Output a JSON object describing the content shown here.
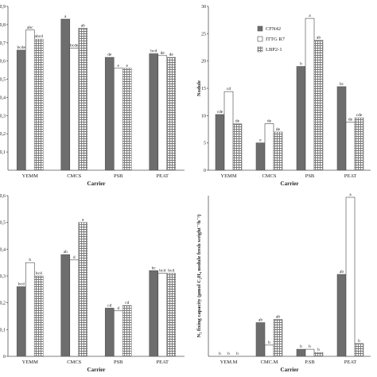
{
  "legend": {
    "series": [
      "CFN42",
      "ITTG R7",
      "LBP2-1"
    ]
  },
  "chart_data": [
    {
      "type": "bar",
      "categories": [
        "YEMM",
        "CMCS",
        "PSB",
        "PEAT"
      ],
      "series": [
        {
          "name": "CFN42",
          "values": [
            0.66,
            0.83,
            0.62,
            0.64
          ]
        },
        {
          "name": "ITTG R7",
          "values": [
            0.77,
            0.67,
            0.56,
            0.63
          ]
        },
        {
          "name": "LBP2-1",
          "values": [
            0.72,
            0.78,
            0.56,
            0.62
          ]
        }
      ],
      "letters": [
        [
          "bcde",
          "abc",
          "abcd"
        ],
        [
          "a",
          "bcde",
          "ab"
        ],
        [
          "de",
          "e",
          "e"
        ],
        [
          "bcd",
          "de",
          "de"
        ]
      ],
      "ylim": [
        0,
        0.9
      ],
      "yticks": [
        "0,1",
        "0,2",
        "0,3",
        "0,4",
        "0,5",
        "0,6",
        "0,7",
        "0,8",
        "0,9"
      ],
      "xlabel": "Carrier",
      "ylabel": ""
    },
    {
      "type": "bar",
      "categories": [
        "YEMM",
        "CMCS",
        "PSB",
        "PEAT"
      ],
      "series": [
        {
          "name": "CFN42",
          "values": [
            10.2,
            5.0,
            19.0,
            15.3
          ]
        },
        {
          "name": "ITTG R7",
          "values": [
            14.4,
            8.5,
            27.8,
            8.8
          ]
        },
        {
          "name": "LBP2-1",
          "values": [
            8.5,
            7.0,
            23.8,
            9.6
          ]
        }
      ],
      "letters": [
        [
          "cde",
          "cd",
          "de"
        ],
        [
          "e",
          "de",
          "de"
        ],
        [
          "b",
          "a",
          "ab"
        ],
        [
          "bc",
          "de",
          "cde"
        ]
      ],
      "ylim": [
        0,
        30
      ],
      "yticks": [
        "0",
        "5",
        "10",
        "15",
        "20",
        "25",
        "30"
      ],
      "xlabel": "Carrier",
      "ylabel": "Nodule",
      "show_legend": true
    },
    {
      "type": "bar",
      "categories": [
        "YEMM",
        "CMCS",
        "PSB",
        "PEAT"
      ],
      "series": [
        {
          "name": "CFN42",
          "values": [
            0.26,
            0.38,
            0.18,
            0.32
          ]
        },
        {
          "name": "ITTG R7",
          "values": [
            0.35,
            0.36,
            0.17,
            0.31
          ]
        },
        {
          "name": "LBP2-1",
          "values": [
            0.3,
            0.5,
            0.19,
            0.31
          ]
        }
      ],
      "letters": [
        [
          "bcd",
          "b",
          "bcd"
        ],
        [
          "ab",
          "d",
          "a"
        ],
        [
          "cd",
          "d",
          "cd"
        ],
        [
          "bc",
          "bcd",
          "bcd"
        ]
      ],
      "ylim": [
        0,
        0.6
      ],
      "yticks": [
        "0",
        "0,1",
        "0,2",
        "0,3",
        "0,4",
        "0,5",
        "0,6"
      ],
      "xlabel": "Carrier",
      "ylabel": ""
    },
    {
      "type": "bar",
      "categories": [
        "YEM.M",
        "CMC.M",
        "P.SB",
        "PEAT"
      ],
      "series": [
        {
          "name": "CFN42",
          "values": [
            0.0,
            1.05,
            0.22,
            2.55
          ]
        },
        {
          "name": "ITTG R7",
          "values": [
            0.0,
            0.35,
            0.22,
            4.95
          ]
        },
        {
          "name": "LBP2-1",
          "values": [
            0.0,
            1.15,
            0.12,
            0.4
          ]
        }
      ],
      "letters": [
        [
          "b",
          "b",
          "b"
        ],
        [
          "ab",
          "b",
          "ab"
        ],
        [
          "b",
          "b",
          "b"
        ],
        [
          "ab",
          "a",
          "b"
        ]
      ],
      "ylim": [
        0,
        5
      ],
      "yticks": [],
      "xlabel": "Carrier",
      "ylabel": "N₂ fixing capacity (µmol C₂H₄ nodule fresh weight⁻¹h⁻¹)"
    }
  ],
  "colors": {
    "series0": "#6d6d6d",
    "series1": "#ffffff",
    "hatch": "#777777",
    "axis": "#555555"
  }
}
